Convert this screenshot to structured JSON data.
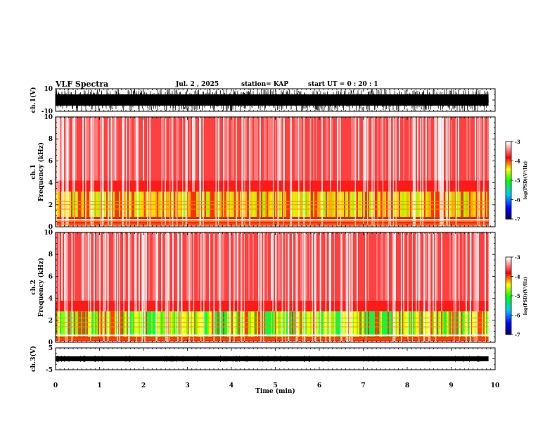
{
  "header": {
    "title": "VLF Spectra",
    "date": "Jul. 2 , 2025",
    "station": "station= KAP",
    "start": "start UT =  0 : 20 : 1"
  },
  "chart_data": [
    {
      "type": "line",
      "panel": "ch1-waveform",
      "ylabel": "ch.1(V)",
      "ylim": [
        -10,
        10
      ],
      "yticks": [
        "10",
        "-10"
      ],
      "xlim": [
        0,
        10
      ],
      "trace_xmax": 9.85,
      "color": "#000000"
    },
    {
      "type": "heatmap",
      "panel": "ch1-spectrogram",
      "ylabel": "ch.1 Frequency (kHz)",
      "ylim": [
        0,
        10
      ],
      "yticks": [
        "0",
        "2",
        "4",
        "6",
        "8",
        "10"
      ],
      "xlim": [
        0,
        10
      ],
      "colorbar": {
        "label": "log(PSD)(V²/Hz)",
        "ticks": [
          "-3",
          "-4",
          "-5",
          "-6",
          "-7"
        ],
        "range": [
          -7,
          -3
        ]
      }
    },
    {
      "type": "heatmap",
      "panel": "ch2-spectrogram",
      "ylabel": "ch.2 Frequency (kHz)",
      "ylim": [
        0,
        10
      ],
      "yticks": [
        "0",
        "2",
        "4",
        "6",
        "8",
        "10"
      ],
      "xlim": [
        0,
        10
      ],
      "colorbar": {
        "label": "log(PSD)(V²/Hz)",
        "ticks": [
          "-3",
          "-4",
          "-5",
          "-6",
          "-7"
        ],
        "range": [
          -7,
          -3
        ]
      }
    },
    {
      "type": "line",
      "panel": "ch3-waveform",
      "ylabel": "ch.3(V)",
      "ylim": [
        -5,
        5
      ],
      "yticks": [
        "5",
        "-5"
      ],
      "xlim": [
        0,
        10
      ],
      "trace_level": 0,
      "color": "#000000"
    }
  ],
  "xaxis": {
    "label": "Time (min)",
    "ticks": [
      "0",
      "1",
      "2",
      "3",
      "4",
      "5",
      "6",
      "7",
      "8",
      "9",
      "10"
    ]
  },
  "colors": {
    "cmap": [
      "#000066",
      "#0000ff",
      "#00c8ff",
      "#00ff00",
      "#ffff00",
      "#ff0000",
      "#ffffff"
    ]
  }
}
